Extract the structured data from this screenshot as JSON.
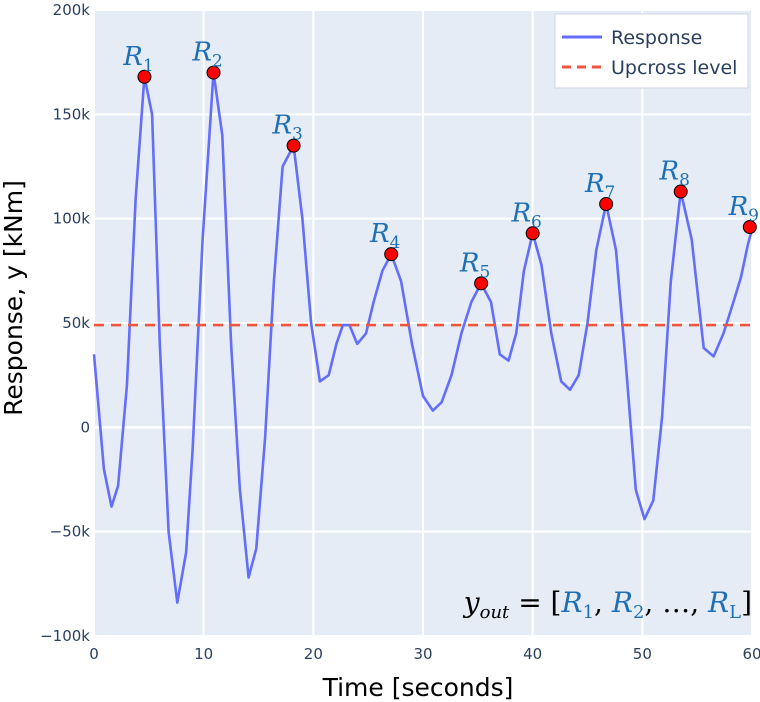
{
  "chart_data": {
    "type": "line",
    "title": "",
    "xlabel": "Time  [seconds]",
    "ylabel": "Response, y  [kNm]",
    "xlim": [
      0,
      60
    ],
    "ylim": [
      -100000,
      200000
    ],
    "x_ticks": [
      0,
      10,
      20,
      30,
      40,
      50,
      60
    ],
    "x_tick_labels": [
      "0",
      "10",
      "20",
      "30",
      "40",
      "50",
      "60"
    ],
    "y_ticks": [
      -100000,
      -50000,
      0,
      50000,
      100000,
      150000,
      200000
    ],
    "y_tick_labels": [
      "−100k",
      "−50k",
      "0",
      "50k",
      "100k",
      "150k",
      "200k"
    ],
    "grid": true,
    "background": "#e5ecf6",
    "legend_position": "top-right",
    "series": [
      {
        "name": "Response",
        "color": "#636efa",
        "x": [
          0,
          0.9,
          1.6,
          2.2,
          3.0,
          3.8,
          4.6,
          5.3,
          6.0,
          6.8,
          7.6,
          8.4,
          9.0,
          9.9,
          10.9,
          11.7,
          12.5,
          13.3,
          14.1,
          14.8,
          15.6,
          16.4,
          17.2,
          18.2,
          19.0,
          19.8,
          20.6,
          21.4,
          22.1,
          22.7,
          23.3,
          24.0,
          24.8,
          25.5,
          26.3,
          27.1,
          28.0,
          29.0,
          30.0,
          30.9,
          31.7,
          32.6,
          33.5,
          34.4,
          35.3,
          36.2,
          37.0,
          37.8,
          38.5,
          39.2,
          40.0,
          40.8,
          41.7,
          42.6,
          43.4,
          44.2,
          45.0,
          45.8,
          46.7,
          47.6,
          48.5,
          49.4,
          50.2,
          51.0,
          51.8,
          52.6,
          53.5,
          54.5,
          55.6,
          56.5,
          57.4,
          58.3,
          59.0,
          59.6,
          60.0
        ],
        "y": [
          35000,
          -20000,
          -38000,
          -28000,
          20000,
          110000,
          168000,
          150000,
          40000,
          -50000,
          -84000,
          -60000,
          -10000,
          90000,
          170000,
          140000,
          40000,
          -30000,
          -72000,
          -58000,
          -5000,
          70000,
          125000,
          135000,
          100000,
          50000,
          22000,
          25000,
          40000,
          49000,
          49000,
          40000,
          45000,
          60000,
          75000,
          83000,
          70000,
          40000,
          15000,
          8000,
          12000,
          25000,
          45000,
          60000,
          69000,
          60000,
          35000,
          32000,
          45000,
          75000,
          93000,
          78000,
          45000,
          22000,
          18000,
          25000,
          50000,
          85000,
          107000,
          85000,
          30000,
          -30000,
          -44000,
          -35000,
          5000,
          70000,
          113000,
          90000,
          38000,
          34000,
          45000,
          60000,
          72000,
          87000,
          95000
        ]
      },
      {
        "name": "Upcross level",
        "color": "#ef553b",
        "level": 49000
      }
    ],
    "peaks": [
      {
        "label": "R",
        "sub": "1",
        "x": 4.6,
        "y": 168000
      },
      {
        "label": "R",
        "sub": "2",
        "x": 10.9,
        "y": 170000
      },
      {
        "label": "R",
        "sub": "3",
        "x": 18.2,
        "y": 135000
      },
      {
        "label": "R",
        "sub": "4",
        "x": 27.1,
        "y": 83000
      },
      {
        "label": "R",
        "sub": "5",
        "x": 35.3,
        "y": 69000
      },
      {
        "label": "R",
        "sub": "6",
        "x": 40.0,
        "y": 93000
      },
      {
        "label": "R",
        "sub": "7",
        "x": 46.7,
        "y": 107000
      },
      {
        "label": "R",
        "sub": "8",
        "x": 53.5,
        "y": 113000
      },
      {
        "label": "R",
        "sub": "9",
        "x": 59.8,
        "y": 96000
      }
    ],
    "peak_marker_color": "#ff0000",
    "annotation": {
      "lhs": "y",
      "lhs_sub": "out",
      "eq": " = [",
      "items": [
        {
          "label": "R",
          "sub": "1"
        },
        {
          "label": "R",
          "sub": "2"
        }
      ],
      "ellipsis": "…",
      "last": {
        "label": "R",
        "sub": "L"
      },
      "close": "]"
    }
  }
}
